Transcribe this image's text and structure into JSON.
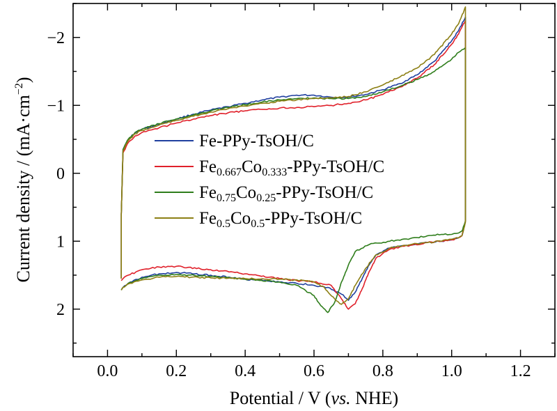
{
  "chart_data": {
    "type": "line",
    "xlabel": {
      "main": "Potential / V (",
      "italic": "vs.",
      "tail": " NHE)"
    },
    "ylabel": {
      "main": "Current density / (mA·cm",
      "sup": "−2",
      "tail": ")"
    },
    "xlim": [
      -0.1,
      1.3
    ],
    "ylim": [
      2.7,
      -2.5
    ],
    "y_axis_inverted": true,
    "xticks": [
      0.0,
      0.2,
      0.4,
      0.6,
      0.8,
      1.0,
      1.2
    ],
    "xtick_labels": [
      "0.0",
      "0.2",
      "0.4",
      "0.6",
      "0.8",
      "1.0",
      "1.2"
    ],
    "yticks": [
      -2,
      -1,
      0,
      1,
      2
    ],
    "ytick_labels": [
      "−2",
      "−1",
      "0",
      "1",
      "2"
    ],
    "grid": false,
    "legend_position": "center-left",
    "series": [
      {
        "name": "Fe-PPy-TsOH/C",
        "name_parts": [
          {
            "t": "Fe-PPy-TsOH/C"
          }
        ],
        "color": "#1f3f9f",
        "x": [
          0.04,
          0.04,
          0.045,
          0.06,
          0.08,
          0.1,
          0.15,
          0.2,
          0.25,
          0.3,
          0.35,
          0.4,
          0.45,
          0.5,
          0.55,
          0.6,
          0.65,
          0.7,
          0.75,
          0.8,
          0.85,
          0.9,
          0.95,
          1.0,
          1.02,
          1.04,
          1.04,
          1.04,
          1.03,
          1.02,
          1.0,
          0.97,
          0.93,
          0.88,
          0.82,
          0.78,
          0.76,
          0.74,
          0.72,
          0.7,
          0.68,
          0.64,
          0.6,
          0.55,
          0.5,
          0.4,
          0.3,
          0.2,
          0.15,
          0.1,
          0.06,
          0.045,
          0.04
        ],
        "y": [
          1.55,
          0.6,
          -0.35,
          -0.5,
          -0.6,
          -0.65,
          -0.72,
          -0.8,
          -0.87,
          -0.93,
          -0.98,
          -1.03,
          -1.08,
          -1.12,
          -1.15,
          -1.15,
          -1.12,
          -1.12,
          -1.16,
          -1.23,
          -1.32,
          -1.45,
          -1.65,
          -1.95,
          -2.1,
          -2.3,
          -0.8,
          0.7,
          0.92,
          0.95,
          0.98,
          1.0,
          1.02,
          1.06,
          1.1,
          1.2,
          1.35,
          1.55,
          1.75,
          1.87,
          1.78,
          1.68,
          1.65,
          1.62,
          1.6,
          1.56,
          1.5,
          1.46,
          1.48,
          1.53,
          1.62,
          1.68,
          1.72
        ]
      },
      {
        "name": "Fe0.667Co0.333-PPy-TsOH/C",
        "name_parts": [
          {
            "t": "Fe"
          },
          {
            "t": "0.667",
            "sub": true
          },
          {
            "t": "Co"
          },
          {
            "t": "0.333",
            "sub": true
          },
          {
            "t": "-PPy-TsOH/C"
          }
        ],
        "color": "#e0202a",
        "x": [
          0.04,
          0.04,
          0.045,
          0.06,
          0.08,
          0.1,
          0.15,
          0.2,
          0.25,
          0.3,
          0.35,
          0.4,
          0.45,
          0.5,
          0.55,
          0.6,
          0.65,
          0.7,
          0.75,
          0.8,
          0.85,
          0.9,
          0.95,
          1.0,
          1.02,
          1.04,
          1.04,
          1.04,
          1.03,
          1.02,
          1.0,
          0.97,
          0.93,
          0.88,
          0.82,
          0.78,
          0.76,
          0.74,
          0.72,
          0.7,
          0.68,
          0.65,
          0.6,
          0.55,
          0.5,
          0.4,
          0.3,
          0.2,
          0.15,
          0.1,
          0.06,
          0.045,
          0.04
        ],
        "y": [
          1.55,
          0.6,
          -0.3,
          -0.45,
          -0.55,
          -0.6,
          -0.67,
          -0.74,
          -0.8,
          -0.85,
          -0.89,
          -0.92,
          -0.94,
          -0.96,
          -0.97,
          -0.98,
          -1.0,
          -1.03,
          -1.08,
          -1.16,
          -1.27,
          -1.4,
          -1.6,
          -1.9,
          -2.05,
          -2.25,
          -0.8,
          0.7,
          0.92,
          0.95,
          0.98,
          1.0,
          1.02,
          1.06,
          1.12,
          1.25,
          1.45,
          1.7,
          1.92,
          2.0,
          1.85,
          1.65,
          1.6,
          1.58,
          1.55,
          1.48,
          1.42,
          1.37,
          1.38,
          1.42,
          1.5,
          1.55,
          1.58
        ]
      },
      {
        "name": "Fe0.75Co0.25-PPy-TsOH/C",
        "name_parts": [
          {
            "t": "Fe"
          },
          {
            "t": "0.75",
            "sub": true
          },
          {
            "t": "Co"
          },
          {
            "t": "0.25",
            "sub": true
          },
          {
            "t": "-PPy-TsOH/C"
          }
        ],
        "color": "#2e7d1b",
        "x": [
          0.04,
          0.04,
          0.045,
          0.06,
          0.08,
          0.1,
          0.15,
          0.2,
          0.25,
          0.3,
          0.35,
          0.4,
          0.45,
          0.5,
          0.55,
          0.6,
          0.65,
          0.7,
          0.75,
          0.8,
          0.85,
          0.9,
          0.95,
          1.0,
          1.02,
          1.04,
          1.04,
          1.04,
          1.03,
          1.02,
          1.0,
          0.97,
          0.93,
          0.88,
          0.82,
          0.76,
          0.72,
          0.7,
          0.68,
          0.66,
          0.64,
          0.62,
          0.6,
          0.55,
          0.5,
          0.4,
          0.3,
          0.2,
          0.15,
          0.1,
          0.06,
          0.045,
          0.04
        ],
        "y": [
          1.55,
          0.6,
          -0.35,
          -0.5,
          -0.6,
          -0.65,
          -0.73,
          -0.8,
          -0.86,
          -0.92,
          -0.97,
          -1.01,
          -1.05,
          -1.08,
          -1.1,
          -1.11,
          -1.1,
          -1.1,
          -1.13,
          -1.2,
          -1.28,
          -1.38,
          -1.5,
          -1.68,
          -1.78,
          -1.85,
          -0.7,
          0.7,
          0.85,
          0.88,
          0.9,
          0.9,
          0.92,
          0.96,
          1.0,
          1.05,
          1.15,
          1.35,
          1.6,
          1.9,
          2.05,
          1.95,
          1.8,
          1.65,
          1.6,
          1.56,
          1.52,
          1.49,
          1.5,
          1.55,
          1.62,
          1.68,
          1.72
        ]
      },
      {
        "name": "Fe0.5Co0.5-PPy-TsOH/C",
        "name_parts": [
          {
            "t": "Fe"
          },
          {
            "t": "0.5",
            "sub": true
          },
          {
            "t": "Co"
          },
          {
            "t": "0.5",
            "sub": true
          },
          {
            "t": "-PPy-TsOH/C"
          }
        ],
        "color": "#8c7f14",
        "x": [
          0.04,
          0.04,
          0.045,
          0.06,
          0.08,
          0.1,
          0.15,
          0.2,
          0.25,
          0.3,
          0.35,
          0.4,
          0.45,
          0.5,
          0.55,
          0.6,
          0.65,
          0.7,
          0.75,
          0.8,
          0.85,
          0.9,
          0.95,
          1.0,
          1.02,
          1.04,
          1.04,
          1.04,
          1.03,
          1.02,
          1.0,
          0.97,
          0.93,
          0.88,
          0.82,
          0.78,
          0.75,
          0.72,
          0.7,
          0.68,
          0.66,
          0.63,
          0.6,
          0.55,
          0.5,
          0.4,
          0.3,
          0.2,
          0.15,
          0.1,
          0.06,
          0.045,
          0.04
        ],
        "y": [
          1.55,
          0.6,
          -0.33,
          -0.48,
          -0.58,
          -0.63,
          -0.71,
          -0.78,
          -0.84,
          -0.9,
          -0.95,
          -0.99,
          -1.03,
          -1.06,
          -1.08,
          -1.1,
          -1.11,
          -1.13,
          -1.2,
          -1.3,
          -1.42,
          -1.55,
          -1.75,
          -2.05,
          -2.2,
          -2.45,
          -0.8,
          0.72,
          0.92,
          0.95,
          0.97,
          1.0,
          1.02,
          1.05,
          1.1,
          1.2,
          1.4,
          1.65,
          1.85,
          1.93,
          1.85,
          1.68,
          1.6,
          1.57,
          1.56,
          1.55,
          1.54,
          1.52,
          1.53,
          1.57,
          1.63,
          1.68,
          1.72
        ]
      }
    ]
  }
}
